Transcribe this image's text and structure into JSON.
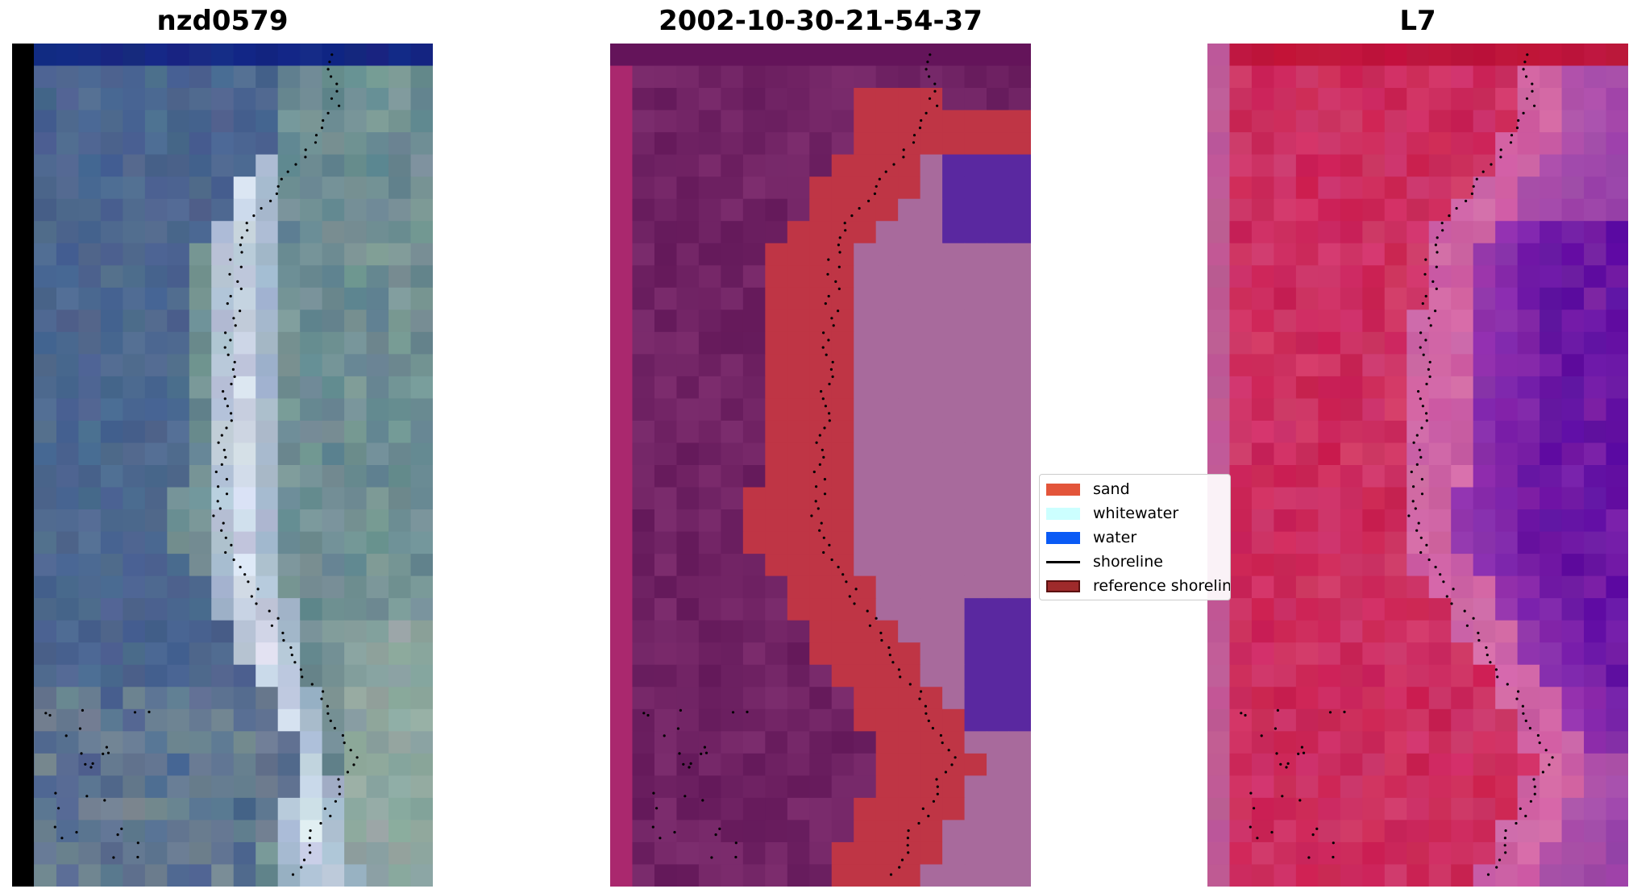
{
  "panels": [
    {
      "title": "nzd0579",
      "kind": "rgb"
    },
    {
      "title": "2002-10-30-21-54-37",
      "kind": "classified"
    },
    {
      "title": "L7",
      "kind": "index"
    }
  ],
  "legend": {
    "items": [
      {
        "label": "sand",
        "color": "#e3553a",
        "type": "patch"
      },
      {
        "label": "whitewater",
        "color": "#ccffff",
        "type": "patch"
      },
      {
        "label": "water",
        "color": "#0a5af5",
        "type": "patch"
      },
      {
        "label": "shoreline",
        "color": "#000000",
        "type": "line"
      },
      {
        "label": "reference shoreline",
        "color": "#9e2a2b",
        "type": "patch-outlined"
      }
    ]
  },
  "colors": {
    "sand_overlay": "#bf3545",
    "water_overlay": "#5a28a0",
    "whitewater_overlay": "#a86a9c",
    "land_purple": "#6a1f5c",
    "index_red": "#c8204f",
    "index_purple": "#5a0aa0"
  }
}
